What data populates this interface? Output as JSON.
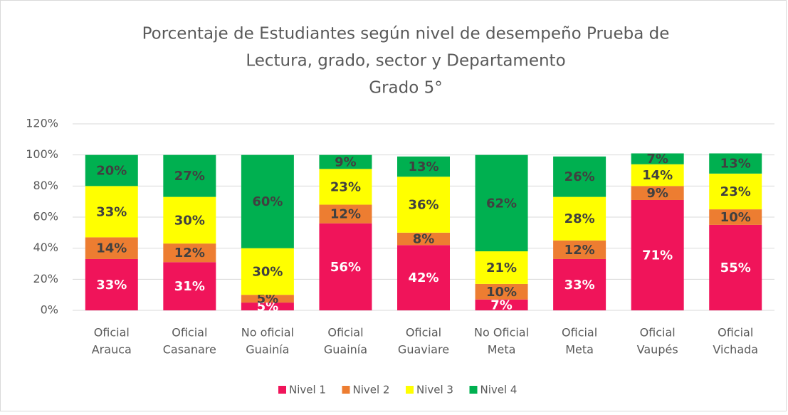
{
  "chart_data": {
    "type": "stacked_bar",
    "title": [
      "Porcentaje de Estudiantes según nivel de desempeño Prueba de",
      "Lectura, grado, sector y Departamento",
      "Grado 5°"
    ],
    "categories": [
      [
        "Oficial",
        "Arauca"
      ],
      [
        "Oficial",
        "Casanare"
      ],
      [
        "No oficial",
        "Guainía"
      ],
      [
        "Oficial",
        "Guainía"
      ],
      [
        "Oficial",
        "Guaviare"
      ],
      [
        "No Oficial",
        "Meta"
      ],
      [
        "Oficial",
        "Meta"
      ],
      [
        "Oficial",
        "Vaupés"
      ],
      [
        "Oficial",
        "Vichada"
      ]
    ],
    "series": [
      {
        "name": "Nivel 1",
        "color": "#f0145a",
        "values": [
          33,
          31,
          5,
          56,
          42,
          7,
          33,
          71,
          55
        ],
        "value_labels": [
          "33%",
          "31%",
          "5%",
          "56%",
          "42%",
          "7%",
          "33%",
          "71%",
          "55%"
        ]
      },
      {
        "name": "Nivel 2",
        "color": "#ed7d31",
        "values": [
          14,
          12,
          5,
          12,
          8,
          10,
          12,
          9,
          10
        ],
        "value_labels": [
          "14%",
          "12%",
          "5%",
          "12%",
          "8%",
          "10%",
          "12%",
          "9%",
          "10%"
        ]
      },
      {
        "name": "Nivel 3",
        "color": "#ffff00",
        "values": [
          33,
          30,
          30,
          23,
          36,
          21,
          28,
          14,
          23
        ],
        "value_labels": [
          "33%",
          "30%",
          "30%",
          "23%",
          "36%",
          "21%",
          "28%",
          "14%",
          "23%"
        ]
      },
      {
        "name": "Nivel 4",
        "color": "#00b050",
        "values": [
          20,
          27,
          60,
          9,
          13,
          62,
          26,
          7,
          13
        ],
        "value_labels": [
          "20%",
          "27%",
          "60%",
          "9%",
          "13%",
          "62%",
          "26%",
          "7%",
          "13%"
        ]
      }
    ],
    "ylim": [
      0,
      120
    ],
    "yticks": [
      {
        "value": 0,
        "label": "0%"
      },
      {
        "value": 20,
        "label": "20%"
      },
      {
        "value": 40,
        "label": "40%"
      },
      {
        "value": 60,
        "label": "60%"
      },
      {
        "value": 80,
        "label": "80%"
      },
      {
        "value": 100,
        "label": "100%"
      },
      {
        "value": 120,
        "label": "120%"
      }
    ],
    "grid": true,
    "legend": "bottom"
  }
}
